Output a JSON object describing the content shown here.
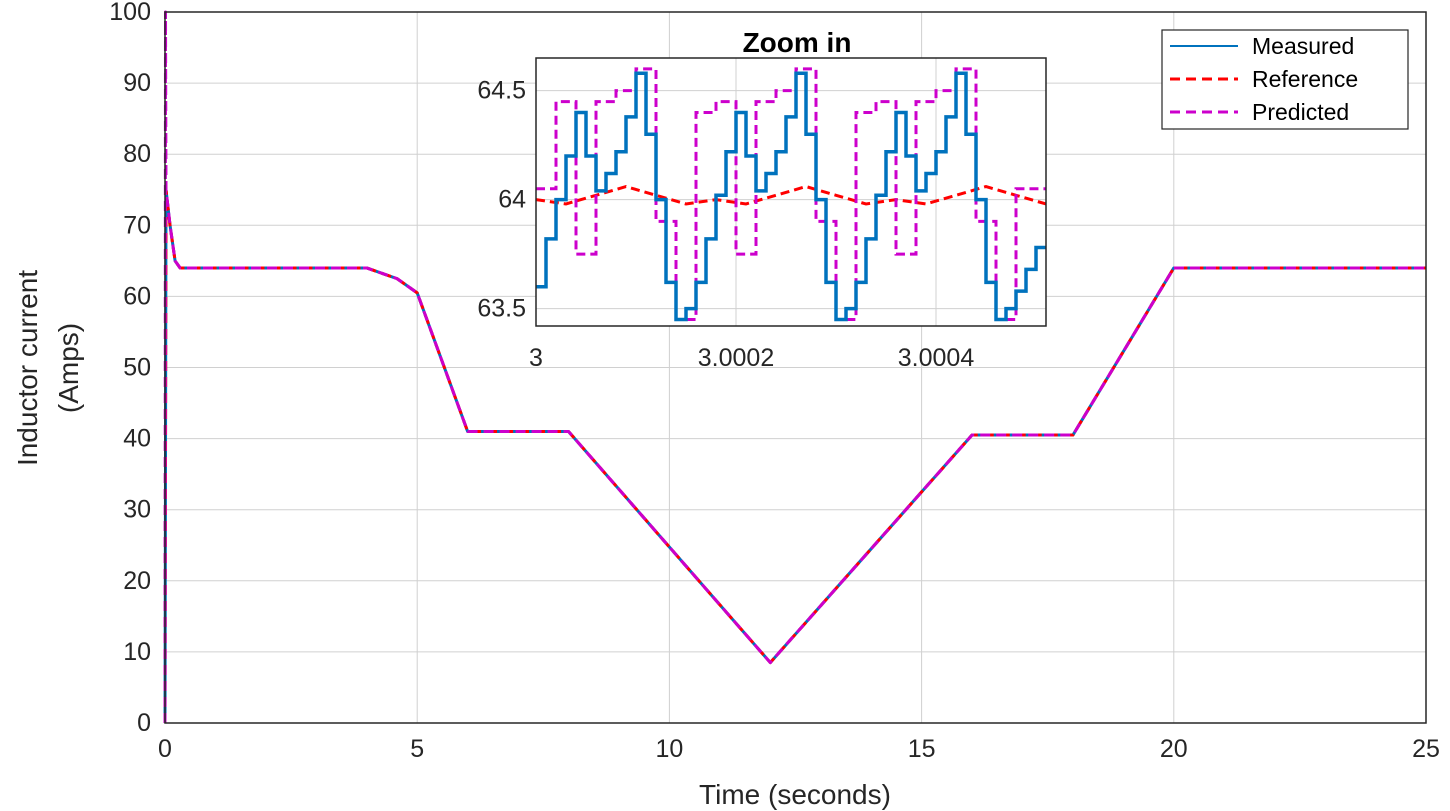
{
  "chart_data": [
    {
      "type": "line",
      "title": "",
      "xlabel": "Time (seconds)",
      "ylabel": [
        "Inductor current",
        "(Amps)"
      ],
      "xlim": [
        0,
        25
      ],
      "ylim": [
        0,
        100
      ],
      "x_ticks": [
        0,
        5,
        10,
        15,
        20,
        25
      ],
      "x_tick_labels": [
        "0",
        "5",
        "10",
        "15",
        "20",
        "25"
      ],
      "y_ticks": [
        0,
        10,
        20,
        30,
        40,
        50,
        60,
        70,
        80,
        90,
        100
      ],
      "y_tick_labels": [
        "0",
        "10",
        "20",
        "30",
        "40",
        "50",
        "60",
        "70",
        "80",
        "90",
        "100"
      ],
      "grid": true,
      "legend_position": "top-right",
      "series": [
        {
          "name": "Measured",
          "color": "#0072BD",
          "style": "solid",
          "x": [
            0,
            0.02,
            0.1,
            0.2,
            0.3,
            4,
            4.6,
            5,
            6,
            8,
            12,
            16,
            18,
            20,
            25
          ],
          "y": [
            0,
            75,
            70,
            65,
            64,
            64,
            62.5,
            60.5,
            41,
            41,
            8.5,
            40.5,
            40.5,
            64,
            64
          ]
        },
        {
          "name": "Reference",
          "color": "#FF0000",
          "style": "dashed",
          "x": [
            0,
            0.02,
            0.1,
            0.2,
            0.3,
            4,
            4.6,
            5,
            6,
            8,
            12,
            16,
            18,
            20,
            25
          ],
          "y": [
            0,
            75,
            70,
            65,
            64,
            64,
            62.5,
            60.5,
            41,
            41,
            8.5,
            40.5,
            40.5,
            64,
            64
          ]
        },
        {
          "name": "Predicted",
          "color": "#CC00CC",
          "style": "dashed",
          "x": [
            0,
            0.01,
            0.02,
            0.1,
            0.2,
            0.3,
            4,
            4.6,
            5,
            6,
            8,
            12,
            16,
            18,
            20,
            25
          ],
          "y": [
            0,
            100,
            75,
            70,
            65,
            64,
            64,
            62.5,
            60.5,
            41,
            41,
            8.5,
            40.5,
            40.5,
            64,
            64
          ]
        }
      ]
    },
    {
      "type": "line",
      "title": "Zoom in",
      "xlim": [
        3,
        3.00051
      ],
      "ylim": [
        63.42,
        64.65
      ],
      "x_ticks": [
        3,
        3.0002,
        3.0004
      ],
      "x_tick_labels": [
        "3",
        "3.0002",
        "3.0004"
      ],
      "y_ticks": [
        63.5,
        64,
        64.5
      ],
      "y_tick_labels": [
        "63.5",
        "64",
        "64.5"
      ],
      "grid": true,
      "series": [
        {
          "name": "Measured",
          "color": "#0072BD",
          "style": "solid",
          "x": [
            3,
            3.00001,
            3.00002,
            3.00003,
            3.00004,
            3.00005,
            3.00006,
            3.00007,
            3.00008,
            3.00009,
            3.0001,
            3.00011,
            3.00012,
            3.00013,
            3.00014,
            3.00015,
            3.00016,
            3.00017,
            3.00018,
            3.00019,
            3.0002,
            3.00021,
            3.00022,
            3.00023,
            3.00024,
            3.00025,
            3.00026,
            3.00027,
            3.00028,
            3.00029,
            3.0003,
            3.00031,
            3.00032,
            3.00033,
            3.00034,
            3.00035,
            3.00036,
            3.00037,
            3.00038,
            3.00039,
            3.0004,
            3.00041,
            3.00042,
            3.00043,
            3.00044,
            3.00045,
            3.00046,
            3.00047,
            3.00048,
            3.00049,
            3.0005,
            3.00051
          ],
          "y": [
            63.6,
            63.82,
            64.0,
            64.2,
            64.4,
            64.2,
            64.04,
            64.12,
            64.22,
            64.38,
            64.58,
            64.3,
            64.0,
            63.62,
            63.45,
            63.5,
            63.62,
            63.82,
            64.02,
            64.22,
            64.4,
            64.2,
            64.04,
            64.12,
            64.22,
            64.38,
            64.58,
            64.3,
            64.0,
            63.62,
            63.45,
            63.5,
            63.62,
            63.82,
            64.02,
            64.22,
            64.4,
            64.2,
            64.04,
            64.12,
            64.22,
            64.38,
            64.58,
            64.3,
            64.0,
            63.62,
            63.45,
            63.5,
            63.58,
            63.68,
            63.78,
            63.78
          ]
        },
        {
          "name": "Reference",
          "color": "#FF0000",
          "style": "dashed",
          "x": [
            3,
            3.00003,
            3.00006,
            3.00009,
            3.00012,
            3.00015,
            3.00018,
            3.00021,
            3.00024,
            3.00027,
            3.0003,
            3.00033,
            3.00036,
            3.00039,
            3.00042,
            3.00045,
            3.00048,
            3.00051
          ],
          "y": [
            64.0,
            63.98,
            64.02,
            64.06,
            64.02,
            63.98,
            64.0,
            63.98,
            64.02,
            64.06,
            64.02,
            63.98,
            64.0,
            63.98,
            64.02,
            64.06,
            64.02,
            63.98
          ]
        },
        {
          "name": "Predicted",
          "color": "#CC00CC",
          "style": "dashed",
          "x": [
            3,
            3.00002,
            3.00004,
            3.00006,
            3.00008,
            3.0001,
            3.00012,
            3.00014,
            3.00016,
            3.00018,
            3.0002,
            3.00022,
            3.00024,
            3.00026,
            3.00028,
            3.0003,
            3.00032,
            3.00034,
            3.00036,
            3.00038,
            3.0004,
            3.00042,
            3.00044,
            3.00046,
            3.00048,
            3.0005,
            3.00051
          ],
          "y": [
            64.05,
            64.45,
            63.75,
            64.45,
            64.5,
            64.6,
            63.9,
            63.45,
            64.4,
            64.45,
            63.75,
            64.45,
            64.5,
            64.6,
            63.9,
            63.45,
            64.4,
            64.45,
            63.75,
            64.45,
            64.5,
            64.6,
            63.9,
            63.45,
            64.05,
            64.05,
            64.05
          ]
        }
      ]
    }
  ]
}
